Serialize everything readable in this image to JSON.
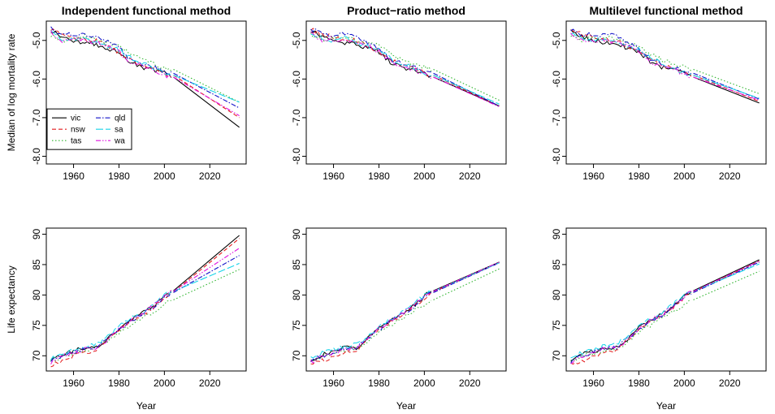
{
  "colors": {
    "vic": "#000000",
    "nsw": "#e41a1c",
    "tas": "#2fb52f",
    "qld": "#1010c8",
    "sa": "#17d4e8",
    "wa": "#e010e0"
  },
  "chart_data": [
    {
      "type": "line",
      "panel": "mort-ifm",
      "title": "Independent functional method",
      "xlabel": "",
      "ylabel": "Median of log mortality rate",
      "xlim": [
        1948,
        2036
      ],
      "ylim": [
        -8.2,
        -4.5
      ],
      "xticks": [
        1960,
        1980,
        2000,
        2020
      ],
      "yticks": [
        -5.0,
        -6.0,
        -7.0,
        -8.0
      ],
      "legend": {
        "position": "bottom-left",
        "entries": [
          "vic",
          "nsw",
          "tas",
          "qld",
          "sa",
          "wa"
        ]
      },
      "forecast_end": {
        "vic": -7.25,
        "nsw": -7.0,
        "tas": -6.6,
        "qld": -6.75,
        "sa": -6.6,
        "wa": -6.95
      }
    },
    {
      "type": "line",
      "panel": "mort-pr",
      "title": "Product−ratio method",
      "xlabel": "",
      "ylabel": "",
      "xlim": [
        1948,
        2036
      ],
      "ylim": [
        -8.2,
        -4.5
      ],
      "xticks": [
        1960,
        1980,
        2000,
        2020
      ],
      "yticks": [
        -5.0,
        -6.0,
        -7.0,
        -8.0
      ],
      "forecast_end": {
        "vic": -6.7,
        "nsw": -6.7,
        "tas": -6.55,
        "qld": -6.7,
        "sa": -6.65,
        "wa": -6.72
      }
    },
    {
      "type": "line",
      "panel": "mort-mfm",
      "title": "Multilevel functional method",
      "xlabel": "",
      "ylabel": "",
      "xlim": [
        1948,
        2036
      ],
      "ylim": [
        -8.2,
        -4.5
      ],
      "xticks": [
        1960,
        1980,
        2000,
        2020
      ],
      "yticks": [
        -5.0,
        -6.0,
        -7.0,
        -8.0
      ],
      "forecast_end": {
        "vic": -6.62,
        "nsw": -6.58,
        "tas": -6.38,
        "qld": -6.52,
        "sa": -6.5,
        "wa": -6.55
      }
    },
    {
      "type": "line",
      "panel": "le-ifm",
      "title": "",
      "xlabel": "Year",
      "ylabel": "Life expectancy",
      "xlim": [
        1948,
        2036
      ],
      "ylim": [
        67.5,
        91
      ],
      "xticks": [
        1960,
        1980,
        2000,
        2020
      ],
      "yticks": [
        70,
        75,
        80,
        85,
        90
      ],
      "forecast_end": {
        "vic": 89.8,
        "nsw": 89.3,
        "tas": 84.2,
        "qld": 86.5,
        "sa": 85.2,
        "wa": 87.7
      }
    },
    {
      "type": "line",
      "panel": "le-pr",
      "title": "",
      "xlabel": "Year",
      "ylabel": "",
      "xlim": [
        1948,
        2036
      ],
      "ylim": [
        67.5,
        91
      ],
      "xticks": [
        1960,
        1980,
        2000,
        2020
      ],
      "yticks": [
        70,
        75,
        80,
        85,
        90
      ],
      "forecast_end": {
        "vic": 85.4,
        "nsw": 85.3,
        "tas": 84.3,
        "qld": 85.3,
        "sa": 85.3,
        "wa": 85.4
      }
    },
    {
      "type": "line",
      "panel": "le-mfm",
      "title": "",
      "xlabel": "Year",
      "ylabel": "",
      "xlim": [
        1948,
        2036
      ],
      "ylim": [
        67.5,
        91
      ],
      "xticks": [
        1960,
        1980,
        2000,
        2020
      ],
      "yticks": [
        70,
        75,
        80,
        85,
        90
      ],
      "forecast_end": {
        "vic": 85.8,
        "nsw": 85.6,
        "tas": 83.9,
        "qld": 85.4,
        "sa": 85.1,
        "wa": 85.6
      }
    }
  ],
  "historical": {
    "years": [
      1950,
      1955,
      1960,
      1965,
      1970,
      1975,
      1980,
      1985,
      1990,
      1995,
      2000,
      2003
    ],
    "mort": {
      "vic": [
        -4.75,
        -4.9,
        -5.0,
        -5.05,
        -5.1,
        -5.2,
        -5.3,
        -5.55,
        -5.7,
        -5.75,
        -5.85,
        -5.95
      ],
      "nsw": [
        -4.7,
        -4.85,
        -4.9,
        -5.0,
        -5.0,
        -5.15,
        -5.3,
        -5.5,
        -5.65,
        -5.72,
        -5.85,
        -5.9
      ],
      "tas": [
        -4.85,
        -5.0,
        -4.95,
        -4.9,
        -5.0,
        -5.05,
        -5.15,
        -5.35,
        -5.5,
        -5.6,
        -5.7,
        -5.75
      ],
      "qld": [
        -4.7,
        -4.85,
        -4.85,
        -4.85,
        -4.9,
        -5.05,
        -5.2,
        -5.5,
        -5.6,
        -5.7,
        -5.8,
        -5.85
      ],
      "sa": [
        -4.8,
        -4.95,
        -5.0,
        -4.95,
        -5.05,
        -5.15,
        -5.25,
        -5.45,
        -5.6,
        -5.7,
        -5.85,
        -5.9
      ],
      "wa": [
        -4.8,
        -5.0,
        -5.0,
        -5.0,
        -5.05,
        -5.15,
        -5.3,
        -5.55,
        -5.65,
        -5.75,
        -5.9,
        -5.95
      ]
    },
    "le": {
      "vic": [
        69.3,
        70.2,
        70.8,
        71.3,
        71.3,
        72.8,
        74.5,
        75.8,
        76.9,
        78.1,
        79.8,
        80.7
      ],
      "nsw": [
        68.5,
        69.2,
        69.9,
        70.6,
        70.9,
        72.6,
        74.3,
        75.6,
        76.6,
        77.9,
        79.5,
        80.5
      ],
      "tas": [
        69.2,
        69.9,
        70.4,
        71.0,
        71.2,
        72.3,
        73.9,
        75.0,
        76.1,
        77.2,
        78.5,
        79.2
      ],
      "qld": [
        69.1,
        70.0,
        70.6,
        71.2,
        71.4,
        72.9,
        74.3,
        75.7,
        76.7,
        78.0,
        79.7,
        80.4
      ],
      "sa": [
        69.6,
        70.5,
        71.0,
        71.6,
        71.9,
        73.1,
        74.8,
        76.0,
        77.1,
        78.4,
        79.9,
        80.6
      ],
      "wa": [
        68.9,
        69.9,
        70.5,
        71.1,
        71.2,
        72.6,
        74.5,
        75.8,
        76.8,
        78.1,
        79.7,
        80.6
      ]
    }
  },
  "forecast_years": [
    2004,
    2033
  ]
}
